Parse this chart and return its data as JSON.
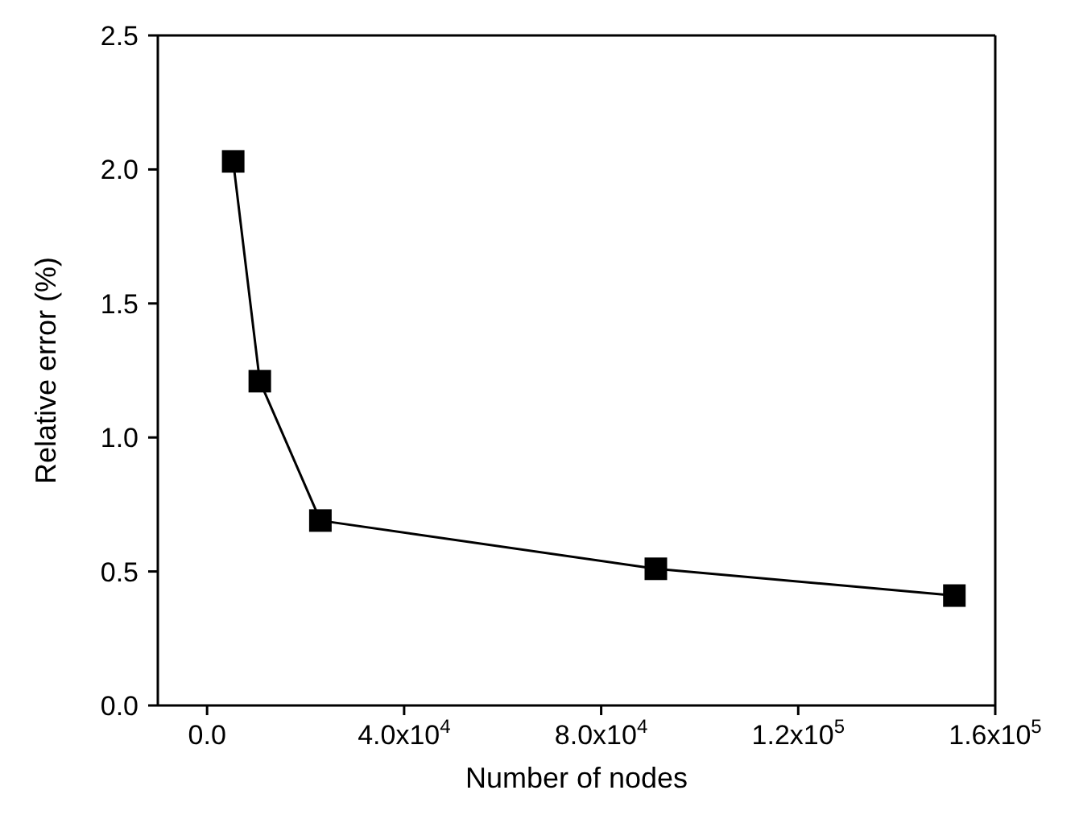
{
  "chart_data": {
    "type": "line",
    "xlabel": "Number of nodes",
    "ylabel": "Relative error (%)",
    "x": [
      5300,
      10700,
      23000,
      91100,
      151700
    ],
    "series": [
      {
        "color": "#000000",
        "values": [
          2.03,
          1.21,
          0.69,
          0.51,
          0.41
        ]
      }
    ],
    "xlim": [
      -10000,
      160000
    ],
    "xticks": [
      {
        "value": 0,
        "label": "0.0"
      },
      {
        "value": 40000,
        "label": "4.0x10$^{4}$"
      },
      {
        "value": 80000,
        "label": "8.0x10$^{4}$"
      },
      {
        "value": 120000,
        "label": "1.2x10$^{5}$"
      },
      {
        "value": 160000,
        "label": "1.6x10$^{5}$"
      }
    ],
    "ylim": [
      0,
      2.5
    ],
    "yticks": [
      {
        "value": 0,
        "label": "0.0"
      },
      {
        "value": 0.5,
        "label": "0.5"
      },
      {
        "value": 1,
        "label": "1.0"
      },
      {
        "value": 1.5,
        "label": "1.5"
      },
      {
        "value": 2,
        "label": "2.0"
      },
      {
        "value": 2.5,
        "label": "2.5"
      }
    ],
    "grid": false,
    "legend": false,
    "marker": "square",
    "line_style": "solid"
  }
}
